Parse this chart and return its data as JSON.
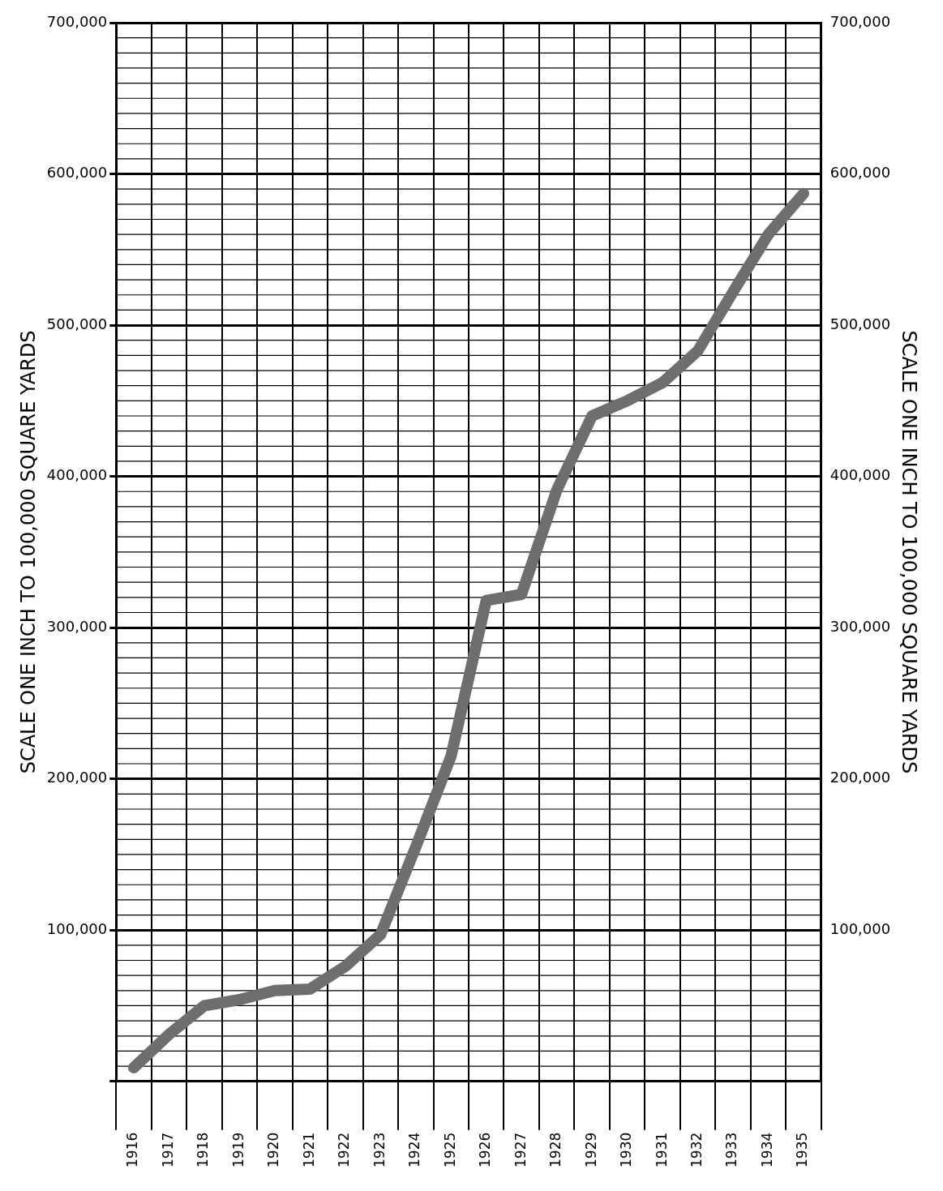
{
  "chart_data": {
    "type": "line",
    "ylabel": "SCALE ONE INCH TO 100,000 SQUARE YARDS",
    "y2label": "SCALE ONE INCH TO 100,000 SQUARE YARDS",
    "categories": [
      "1916",
      "1917",
      "1918",
      "1919",
      "1920",
      "1921",
      "1922",
      "1923",
      "1924",
      "1925",
      "1926",
      "1927",
      "1928",
      "1929",
      "1930",
      "1931",
      "1932",
      "1933",
      "1934",
      "1935"
    ],
    "series": [
      {
        "color": "#6e6e6e",
        "values": [
          9000,
          31000,
          50000,
          54000,
          60000,
          61000,
          76000,
          97000,
          155000,
          215000,
          318000,
          322000,
          391000,
          440000,
          450000,
          462000,
          483000,
          522000,
          560000,
          587000
        ]
      }
    ],
    "ylim": [
      0,
      700000
    ],
    "yticks": [
      {
        "value": 0,
        "label": null
      },
      {
        "value": 100000,
        "label": "100,000"
      },
      {
        "value": 200000,
        "label": "200,000"
      },
      {
        "value": 300000,
        "label": "300,000"
      },
      {
        "value": 400000,
        "label": "400,000"
      },
      {
        "value": 500000,
        "label": "500,000"
      },
      {
        "value": 600000,
        "label": "600,000"
      },
      {
        "value": 700000,
        "label": "700,000"
      }
    ],
    "y2lim": [
      0,
      700000
    ],
    "y2ticks": [
      {
        "value": 0,
        "label": null
      },
      {
        "value": 100000,
        "label": "100,000"
      },
      {
        "value": 200000,
        "label": "200,000"
      },
      {
        "value": 300000,
        "label": "300,000"
      },
      {
        "value": 400000,
        "label": "400,000"
      },
      {
        "value": 500000,
        "label": "500,000"
      },
      {
        "value": 600000,
        "label": "600,000"
      },
      {
        "value": 700000,
        "label": "700,000"
      }
    ],
    "grid": true,
    "legend": false,
    "marker": "none",
    "line_style": "solid"
  }
}
